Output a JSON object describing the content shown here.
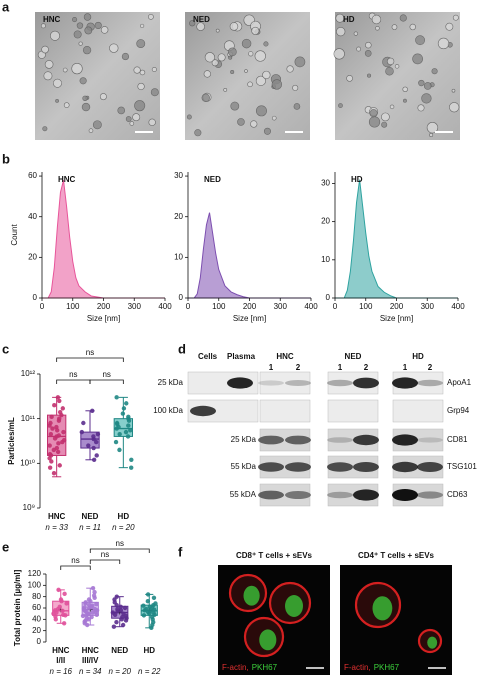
{
  "panel_labels": [
    "a",
    "b",
    "c",
    "d",
    "e",
    "f"
  ],
  "micrographs": {
    "labels": [
      "HNC",
      "NED",
      "HD"
    ]
  },
  "chart_data": [
    {
      "type": "area",
      "title": "HNC",
      "color": "#e8559a",
      "ylabel": "Count",
      "xlabel": "Size [nm]",
      "x": [
        0,
        20,
        30,
        40,
        50,
        60,
        70,
        80,
        90,
        100,
        110,
        120,
        140,
        160,
        180,
        200,
        250,
        300,
        350,
        400
      ],
      "values": [
        0,
        0,
        3,
        15,
        35,
        52,
        58,
        45,
        30,
        18,
        10,
        6,
        3,
        1,
        0.5,
        0,
        0,
        0,
        0,
        0
      ],
      "xlim": [
        0,
        400
      ],
      "xticks": [
        0,
        100,
        200,
        300,
        400
      ],
      "ylim": [
        0,
        62
      ],
      "yticks": [
        0,
        20,
        40,
        60
      ]
    },
    {
      "type": "area",
      "title": "NED",
      "color": "#7d4fb0",
      "xlabel": "Size [nm]",
      "x": [
        0,
        20,
        30,
        40,
        50,
        60,
        70,
        80,
        90,
        100,
        110,
        120,
        140,
        160,
        180,
        200,
        250,
        300,
        350,
        400
      ],
      "values": [
        0,
        0,
        1,
        5,
        12,
        18,
        21,
        16,
        11,
        7,
        5,
        3,
        1.5,
        0.8,
        0.3,
        0,
        0,
        0,
        0,
        0
      ],
      "xlim": [
        0,
        400
      ],
      "xticks": [
        0,
        100,
        200,
        300,
        400
      ],
      "ylim": [
        0,
        31
      ],
      "yticks": [
        0,
        10,
        20,
        30
      ]
    },
    {
      "type": "area",
      "title": "HD",
      "color": "#2fa3a0",
      "xlabel": "Size [nm]",
      "x": [
        0,
        20,
        30,
        40,
        50,
        60,
        70,
        80,
        90,
        100,
        110,
        120,
        140,
        160,
        180,
        200,
        250,
        300,
        350,
        400
      ],
      "values": [
        0,
        0,
        0,
        2,
        7,
        15,
        25,
        31,
        24,
        17,
        11,
        7,
        3,
        1.5,
        0.6,
        0,
        0,
        0,
        0,
        0
      ],
      "xlim": [
        0,
        400
      ],
      "xticks": [
        0,
        100,
        200,
        300,
        400
      ],
      "ylim": [
        0,
        33
      ],
      "yticks": [
        0,
        10,
        20,
        30
      ]
    },
    {
      "type": "box",
      "ylabel": "Particles/mL",
      "log": true,
      "ylim": [
        1000000000,
        1000000000000
      ],
      "yticks": [
        {
          "value": 1000000000,
          "label": "10⁹"
        },
        {
          "value": 10000000000,
          "label": "10¹⁰"
        },
        {
          "value": 100000000000,
          "label": "10¹¹"
        },
        {
          "value": 1000000000000,
          "label": "10¹²"
        }
      ],
      "categories": [
        "HNC",
        "NED",
        "HD"
      ],
      "n_labels": [
        "n = 33",
        "n = 11",
        "n = 20"
      ],
      "significance_labels": [
        "ns",
        "ns",
        "ns"
      ],
      "boxes": [
        {
          "color": "#c2306e",
          "fill": "#e58bb3",
          "low": 5000000000,
          "q1": 15000000000,
          "median": 40000000000,
          "q3": 120000000000,
          "high": 300000000000,
          "points": [
            6000000000,
            8000000000,
            9000000000,
            11000000000,
            13000000000,
            15000000000,
            16000000000,
            18000000000,
            20000000000,
            22000000000,
            25000000000,
            28000000000,
            30000000000,
            33000000000,
            36000000000,
            40000000000,
            42000000000,
            45000000000,
            50000000000,
            55000000000,
            60000000000,
            65000000000,
            70000000000,
            80000000000,
            90000000000,
            100000000000,
            110000000000,
            120000000000,
            140000000000,
            170000000000,
            200000000000,
            250000000000,
            300000000000
          ]
        },
        {
          "color": "#5b2d8e",
          "fill": "#a98ccc",
          "low": 12000000000,
          "q1": 22000000000,
          "median": 35000000000,
          "q3": 50000000000,
          "high": 150000000000,
          "points": [
            12000000000,
            15000000000,
            22000000000,
            25000000000,
            30000000000,
            35000000000,
            40000000000,
            45000000000,
            50000000000,
            80000000000,
            150000000000
          ]
        },
        {
          "color": "#1f8784",
          "fill": "#86cfcc",
          "low": 8000000000,
          "q1": 40000000000,
          "median": 60000000000,
          "q3": 100000000000,
          "high": 300000000000,
          "points": [
            8000000000,
            12000000000,
            20000000000,
            30000000000,
            40000000000,
            45000000000,
            50000000000,
            55000000000,
            60000000000,
            65000000000,
            70000000000,
            75000000000,
            80000000000,
            90000000000,
            100000000000,
            110000000000,
            130000000000,
            170000000000,
            220000000000,
            300000000000
          ]
        }
      ]
    },
    {
      "type": "box",
      "ylabel": "Total protein [µg/ml]",
      "log": false,
      "ylim": [
        0,
        120
      ],
      "yticks": [
        0,
        20,
        40,
        60,
        80,
        100,
        120
      ],
      "categories": [
        "HNC",
        "HNC",
        "NED",
        "HD"
      ],
      "subcategories": [
        "I/II",
        "III/IV",
        null,
        null
      ],
      "n_labels": [
        "n = 16",
        "n = 34",
        "n = 20",
        "n = 22"
      ],
      "significance_labels": [
        "ns",
        "ns",
        "ns"
      ],
      "boxes": [
        {
          "color": "#e0509a",
          "fill": "#f4a9cc",
          "low": 33,
          "q1": 47,
          "median": 55,
          "q3": 72,
          "high": 92,
          "mean": 57,
          "points": [
            33,
            40,
            45,
            47,
            48,
            50,
            52,
            55,
            56,
            58,
            62,
            68,
            72,
            75,
            85,
            92
          ]
        },
        {
          "color": "#a678d4",
          "fill": "#d6c0ee",
          "low": 30,
          "q1": 47,
          "median": 57,
          "q3": 70,
          "high": 95,
          "mean": 58,
          "points": [
            30,
            33,
            36,
            38,
            40,
            42,
            44,
            46,
            47,
            48,
            49,
            50,
            52,
            53,
            54,
            55,
            56,
            57,
            58,
            59,
            60,
            61,
            62,
            64,
            65,
            67,
            68,
            70,
            72,
            75,
            78,
            82,
            88,
            95
          ]
        },
        {
          "color": "#5b2d8e",
          "fill": "#a98ccc",
          "low": 27,
          "q1": 42,
          "median": 52,
          "q3": 63,
          "high": 80,
          "mean": 53,
          "points": [
            27,
            30,
            35,
            38,
            40,
            42,
            44,
            46,
            48,
            50,
            52,
            54,
            56,
            58,
            60,
            62,
            65,
            70,
            75,
            80
          ]
        },
        {
          "color": "#1f8784",
          "fill": "#86cfcc",
          "low": 25,
          "q1": 47,
          "median": 55,
          "q3": 65,
          "high": 84,
          "mean": 56,
          "points": [
            25,
            30,
            35,
            40,
            44,
            47,
            48,
            50,
            52,
            53,
            55,
            56,
            57,
            58,
            60,
            62,
            64,
            65,
            68,
            72,
            78,
            84
          ]
        }
      ]
    }
  ],
  "blot": {
    "columns": [
      "Cells",
      "Plasma"
    ],
    "groups": [
      "HNC",
      "NED",
      "HD"
    ],
    "lanes": [
      "1",
      "2",
      "1",
      "2",
      "1",
      "2"
    ],
    "rows": [
      {
        "marker": "25 kDa",
        "protein": "ApoA1"
      },
      {
        "marker": "100 kDa",
        "protein": "Grp94"
      },
      {
        "marker": "25 kDa",
        "protein": "CD81"
      },
      {
        "marker": "55 kDa",
        "protein": "TSG101"
      },
      {
        "marker": "55 kDA",
        "protein": "CD63"
      }
    ]
  },
  "fluorescence": {
    "titles": [
      "CD8⁺ T cells + sEVs",
      "CD4⁺ T cells + sEVs"
    ],
    "stain_red": "F-actin",
    "separator": ",",
    "stain_green": "PKH67"
  }
}
